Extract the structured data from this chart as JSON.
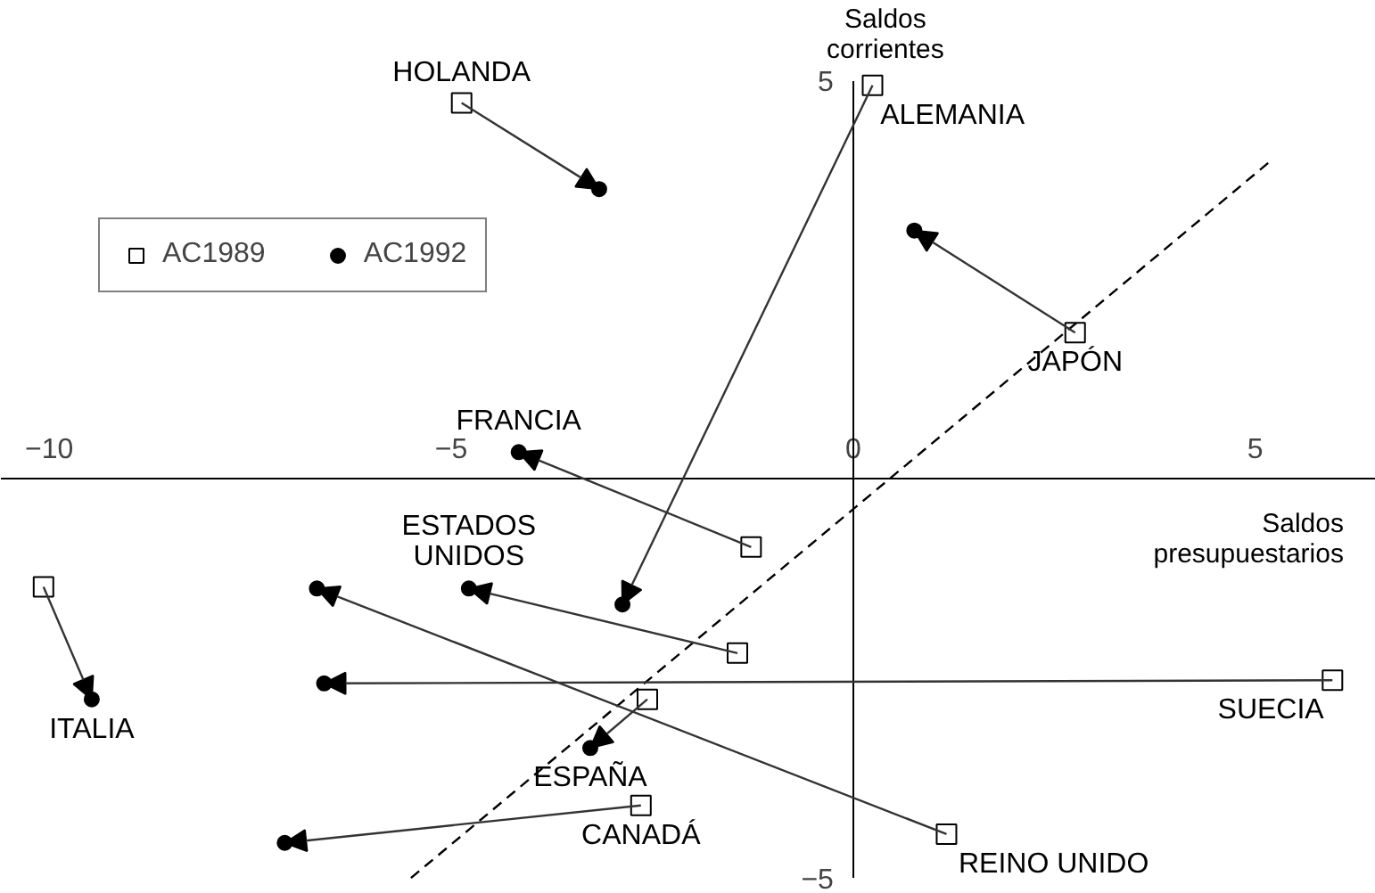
{
  "chart_data": {
    "type": "scatter",
    "xlabel": "Saldos\npresupuestarios",
    "ylabel": "Saldos\ncorrientes",
    "xlim": [
      -10.6,
      6.5
    ],
    "ylim": [
      -5.2,
      6.0
    ],
    "xticks": [
      -10,
      -5,
      {
        "value": 0,
        "label": "0"
      },
      5
    ],
    "yticks": [
      -5,
      5
    ],
    "grid": false,
    "legend": "top left",
    "series": [
      {
        "name": "AC1989",
        "marker": "square",
        "color": "#000000",
        "x": [
          -4.87,
          0.24,
          2.76,
          -1.27,
          -1.44,
          -10.07,
          5.96,
          -2.56,
          1.16,
          -2.64
        ],
        "values": [
          4.72,
          4.94,
          1.84,
          -0.85,
          -2.18,
          -1.35,
          -2.52,
          -2.76,
          -4.45,
          -4.09
        ]
      },
      {
        "name": "AC1992",
        "marker": "circle",
        "color": "#000000",
        "x": [
          -3.16,
          -2.87,
          0.76,
          -4.16,
          -4.78,
          -9.47,
          -6.58,
          -3.27,
          -6.67,
          -7.07
        ],
        "values": [
          3.64,
          -1.57,
          3.12,
          0.34,
          -1.37,
          -2.76,
          -2.56,
          -3.37,
          -1.37,
          -4.56
        ]
      },
      {
        "type": "line",
        "line_style": "dashed",
        "color": "#000000",
        "x": [
          -5.5,
          5.2
        ],
        "values": [
          -5.0,
          4.0
        ]
      }
    ],
    "annotations": [
      {
        "text": "HOLANDA",
        "x": -4.87,
        "y": 4.72
      },
      {
        "text": "ALEMANIA",
        "x": 0.24,
        "y": 4.94
      },
      {
        "text": "JAPÓN",
        "x": 2.76,
        "y": 1.84
      },
      {
        "text": "FRANCIA",
        "x": -4.16,
        "y": 0.34
      },
      {
        "text": "ESTADOS\nUNIDOS",
        "x": -4.78,
        "y": -1.37
      },
      {
        "text": "ITALIA",
        "x": -9.47,
        "y": -2.76
      },
      {
        "text": "SUECIA",
        "x": 5.96,
        "y": -2.52
      },
      {
        "text": "ESPAÑA",
        "x": -3.27,
        "y": -3.37
      },
      {
        "text": "REINO UNIDO",
        "x": 1.16,
        "y": -4.45
      },
      {
        "text": "CANADÁ",
        "x": -2.64,
        "y": -4.09
      }
    ]
  }
}
